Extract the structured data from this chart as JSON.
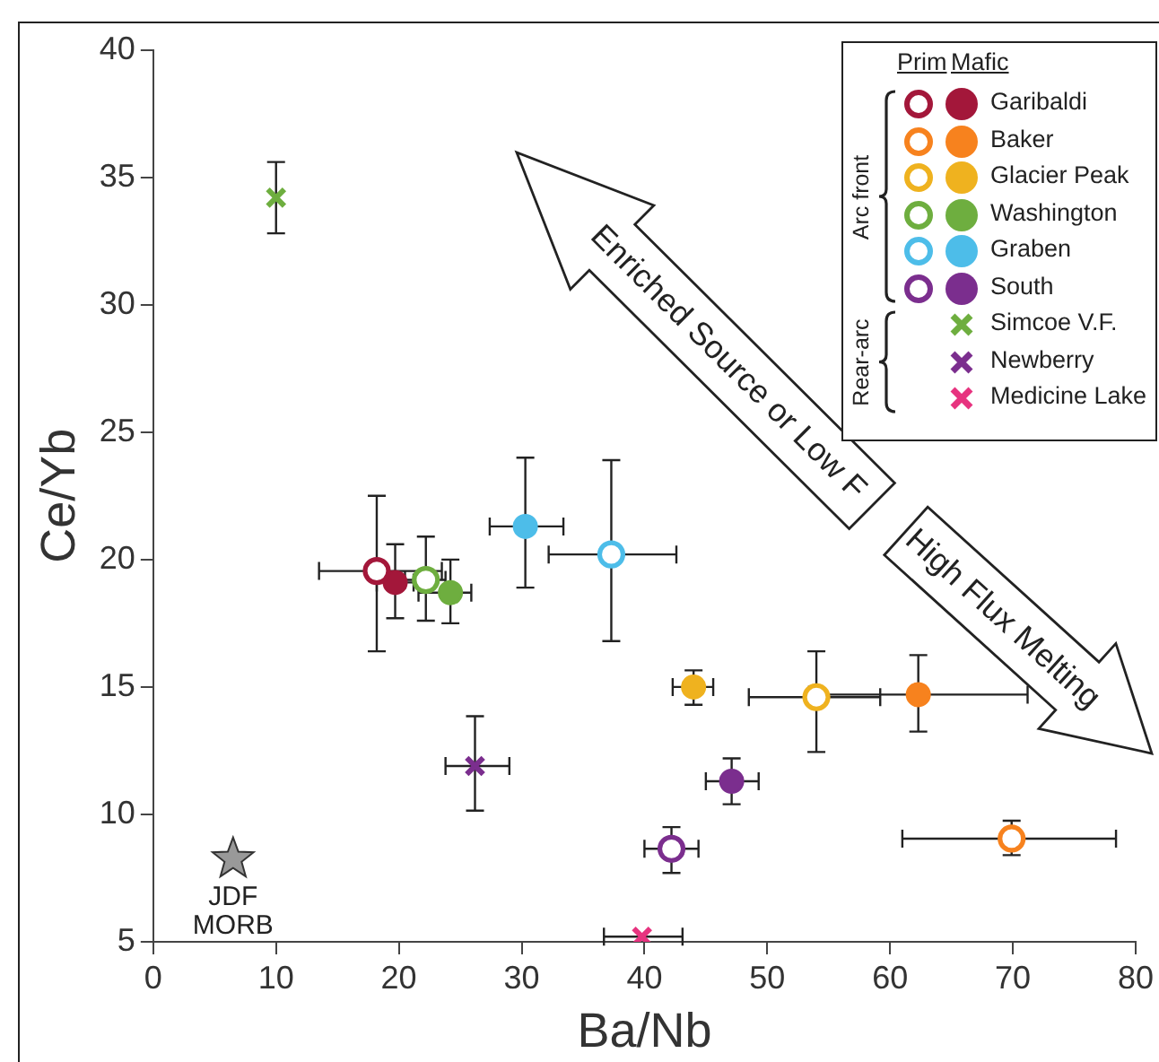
{
  "chart_data": {
    "type": "scatter",
    "xlabel": "Ba/Nb",
    "ylabel": "Ce/Yb",
    "xlim": [
      0,
      80
    ],
    "ylim": [
      5,
      40
    ],
    "xticks": [
      0,
      10,
      20,
      30,
      40,
      50,
      60,
      70,
      80
    ],
    "yticks": [
      5,
      10,
      15,
      20,
      25,
      30,
      35,
      40
    ],
    "grid": false,
    "legend": "top right",
    "annotations": [
      "Enriched Source or Low F",
      "High Flux Melting",
      "Prim",
      "Mafic",
      "Arc front",
      "Rear-arc"
    ],
    "series": [
      {
        "marker": "circle",
        "color": "#a3173a",
        "x": [
          18.2
        ],
        "values": [
          19.55
        ],
        "errors": [
          [
            16.4,
            22.5
          ]
        ],
        "xerrors": [
          [
            13.5,
            23.5
          ]
        ]
      },
      {
        "name": "Garibaldi",
        "marker": "circle",
        "color": "#a3173a",
        "x": [
          19.7
        ],
        "values": [
          19.1
        ],
        "errors": [
          [
            17.7,
            20.6
          ]
        ],
        "xerrors": [
          [
            18.2,
            21.2
          ]
        ]
      },
      {
        "marker": "circle",
        "color": "#f7821e",
        "x": [
          69.9
        ],
        "values": [
          9.05
        ],
        "errors": [
          [
            8.4,
            9.75
          ]
        ],
        "xerrors": [
          [
            61.0,
            78.4
          ]
        ]
      },
      {
        "name": "Baker",
        "marker": "circle",
        "color": "#f7821e",
        "x": [
          62.3
        ],
        "values": [
          14.7
        ],
        "errors": [
          [
            13.25,
            16.25
          ]
        ],
        "xerrors": [
          [
            53.4,
            71.2
          ]
        ]
      },
      {
        "marker": "circle",
        "color": "#efb21f",
        "x": [
          54.0
        ],
        "values": [
          14.6
        ],
        "errors": [
          [
            12.45,
            16.4
          ]
        ],
        "xerrors": [
          [
            48.5,
            59.2
          ]
        ]
      },
      {
        "name": "Glacier Peak",
        "marker": "circle",
        "color": "#efb21f",
        "x": [
          44.0
        ],
        "values": [
          15.0
        ],
        "errors": [
          [
            14.3,
            15.65
          ]
        ],
        "xerrors": [
          [
            42.3,
            45.6
          ]
        ]
      },
      {
        "marker": "circle",
        "color": "#6eae3f",
        "x": [
          22.2
        ],
        "values": [
          19.2
        ],
        "errors": [
          [
            17.6,
            20.9
          ]
        ],
        "xerrors": [
          [
            20.5,
            23.8
          ]
        ]
      },
      {
        "name": "Washington",
        "marker": "circle",
        "color": "#6eae3f",
        "x": [
          24.2
        ],
        "values": [
          18.7
        ],
        "errors": [
          [
            17.5,
            20.0
          ]
        ],
        "xerrors": [
          [
            21.6,
            25.9
          ]
        ]
      },
      {
        "marker": "circle",
        "color": "#4dbde9",
        "x": [
          37.3
        ],
        "values": [
          20.2
        ],
        "errors": [
          [
            16.8,
            23.9
          ]
        ],
        "xerrors": [
          [
            32.2,
            42.6
          ]
        ]
      },
      {
        "name": "Graben",
        "marker": "circle",
        "color": "#4dbde9",
        "x": [
          30.3
        ],
        "values": [
          21.3
        ],
        "errors": [
          [
            18.9,
            24.0
          ]
        ],
        "xerrors": [
          [
            27.4,
            33.4
          ]
        ]
      },
      {
        "marker": "circle",
        "color": "#7b2e8e",
        "x": [
          42.2
        ],
        "values": [
          8.65
        ],
        "errors": [
          [
            7.7,
            9.5
          ]
        ],
        "xerrors": [
          [
            40.0,
            44.4
          ]
        ]
      },
      {
        "name": "South",
        "marker": "circle",
        "color": "#7b2e8e",
        "x": [
          47.1
        ],
        "values": [
          11.3
        ],
        "errors": [
          [
            10.4,
            12.2
          ]
        ],
        "xerrors": [
          [
            45.0,
            49.3
          ]
        ]
      },
      {
        "name": "Simcoe V.F.",
        "marker": "cross",
        "color": "#6eae3f",
        "x": [
          10.0
        ],
        "values": [
          34.2
        ],
        "errors": [
          [
            32.8,
            35.6
          ]
        ]
      },
      {
        "name": "Newberry",
        "marker": "cross",
        "color": "#7b2e8e",
        "x": [
          26.2
        ],
        "values": [
          11.9
        ],
        "errors": [
          [
            10.15,
            13.85
          ]
        ],
        "xerrors": [
          [
            23.8,
            29.0
          ]
        ]
      },
      {
        "name": "Medicine Lake",
        "marker": "cross",
        "color": "#e7337f",
        "x": [
          39.8
        ],
        "values": [
          5.2
        ],
        "xerrors": [
          [
            36.7,
            43.1
          ]
        ]
      },
      {
        "name": "JDF MORB",
        "marker": "star",
        "color": "#999999",
        "x": [
          6.5
        ],
        "values": [
          8.25
        ]
      }
    ]
  }
}
